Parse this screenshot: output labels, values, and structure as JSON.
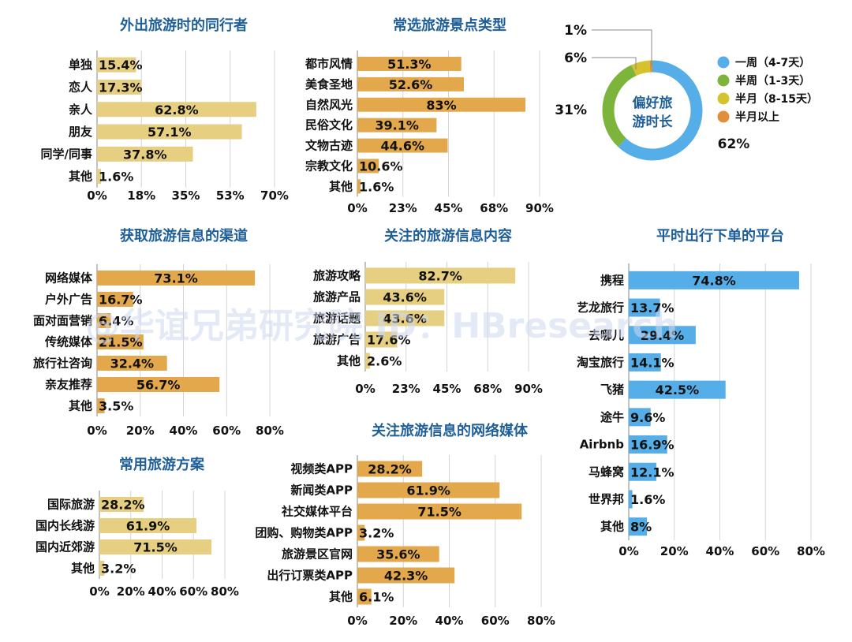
{
  "palette": {
    "light": "#e7cf82",
    "orange": "#e2a84b",
    "blue": "#56aee9",
    "green": "#7db43c",
    "yellow": "#d6c22f",
    "donut_orange": "#e08e3c"
  },
  "watermark": "@华谊兄弟研究院 ID：HBresearch",
  "chart_data": [
    {
      "id": "companions",
      "type": "bar",
      "title": "外出旅游时的同行者",
      "categories": [
        "单独",
        "恋人",
        "亲人",
        "朋友",
        "同学/同事",
        "其他"
      ],
      "values": [
        15.4,
        17.3,
        62.8,
        57.1,
        37.8,
        1.6
      ],
      "value_labels": [
        "15.4%",
        "17.3%",
        "62.8%",
        "57.1%",
        "37.8%",
        "1.6%"
      ],
      "xlim": [
        0,
        70
      ],
      "ticks": [
        "0%",
        "18%",
        "35%",
        "53%",
        "70%"
      ],
      "bar_colors": [
        "light",
        "light",
        "light",
        "light",
        "light",
        "light"
      ]
    },
    {
      "id": "spot_types",
      "type": "bar",
      "title": "常选旅游景点类型",
      "categories": [
        "都市风情",
        "美食圣地",
        "自然风光",
        "民俗文化",
        "文物古迹",
        "宗教文化",
        "其他"
      ],
      "values": [
        51.3,
        52.6,
        83,
        39.1,
        44.6,
        10.6,
        1.6
      ],
      "value_labels": [
        "51.3%",
        "52.6%",
        "83%",
        "39.1%",
        "44.6%",
        "10.6%",
        "1.6%"
      ],
      "xlim": [
        0,
        90
      ],
      "ticks": [
        "0%",
        "23%",
        "45%",
        "68%",
        "90%"
      ],
      "bar_colors": [
        "orange",
        "orange",
        "orange",
        "orange",
        "orange",
        "orange",
        "orange"
      ]
    },
    {
      "id": "duration",
      "type": "pie",
      "center_label": [
        "偏好旅",
        "游时长"
      ],
      "labels": [
        "一周（4-7天）",
        "半周（1-3天）",
        "半月（8-15天）",
        "半月以上"
      ],
      "values": [
        62,
        31,
        6,
        1
      ],
      "value_labels": [
        "62%",
        "31%",
        "6%",
        "1%"
      ],
      "colors": [
        "blue",
        "green",
        "yellow",
        "donut_orange"
      ]
    },
    {
      "id": "info_channels",
      "type": "bar",
      "title": "获取旅游信息的渠道",
      "categories": [
        "网络媒体",
        "户外广告",
        "面对面营销",
        "传统媒体",
        "旅行社咨询",
        "亲友推荐",
        "其他"
      ],
      "values": [
        73.1,
        16.7,
        6.4,
        21.5,
        32.4,
        56.7,
        3.5
      ],
      "value_labels": [
        "73.1%",
        "16.7%",
        "6.4%",
        "21.5%",
        "32.4%",
        "56.7%",
        "3.5%"
      ],
      "xlim": [
        0,
        80
      ],
      "ticks": [
        "0%",
        "20%",
        "40%",
        "60%",
        "80%"
      ],
      "bar_colors": [
        "orange",
        "orange",
        "orange",
        "orange",
        "orange",
        "orange",
        "orange"
      ]
    },
    {
      "id": "info_content",
      "type": "bar",
      "title": "关注的旅游信息内容",
      "categories": [
        "旅游攻略",
        "旅游产品",
        "旅游话题",
        "旅游广告",
        "其他"
      ],
      "values": [
        82.7,
        43.6,
        43.6,
        17.6,
        2.6
      ],
      "value_labels": [
        "82.7%",
        "43.6%",
        "43.6%",
        "17.6%",
        "2.6%"
      ],
      "xlim": [
        0,
        90
      ],
      "ticks": [
        "0%",
        "23%",
        "45%",
        "68%",
        "90%"
      ],
      "bar_colors": [
        "light",
        "light",
        "light",
        "light",
        "light"
      ]
    },
    {
      "id": "platforms",
      "type": "bar",
      "title": "平时出行下单的平台",
      "categories": [
        "携程",
        "艺龙旅行",
        "去哪儿",
        "淘宝旅行",
        "飞猪",
        "途牛",
        "Airbnb",
        "马蜂窝",
        "世界邦",
        "其他"
      ],
      "values": [
        74.8,
        13.7,
        29.4,
        14.1,
        42.5,
        9.6,
        16.9,
        12.1,
        1.6,
        8
      ],
      "value_labels": [
        "74.8%",
        "13.7%",
        "29.4%",
        "14.1%",
        "42.5%",
        "9.6%",
        "16.9%",
        "12.1%",
        "1.6%",
        "8%"
      ],
      "xlim": [
        0,
        80
      ],
      "ticks": [
        "0%",
        "20%",
        "40%",
        "60%",
        "80%"
      ],
      "bar_colors": [
        "blue",
        "blue",
        "blue",
        "blue",
        "blue",
        "blue",
        "blue",
        "blue",
        "blue",
        "blue"
      ]
    },
    {
      "id": "plans",
      "type": "bar",
      "title": "常用旅游方案",
      "categories": [
        "国际旅游",
        "国内长线游",
        "国内近郊游",
        "其他"
      ],
      "values": [
        28.2,
        61.9,
        71.5,
        3.2
      ],
      "value_labels": [
        "28.2%",
        "61.9%",
        "71.5%",
        "3.2%"
      ],
      "xlim": [
        0,
        80
      ],
      "ticks": [
        "0%",
        "20%",
        "40%",
        "60%",
        "80%"
      ],
      "bar_colors": [
        "light",
        "light",
        "light",
        "light"
      ]
    },
    {
      "id": "media",
      "type": "bar",
      "title": "关注旅游信息的网络媒体",
      "categories": [
        "视频类APP",
        "新闻类APP",
        "社交媒体平台",
        "团购、购物类APP",
        "旅游景区官网",
        "出行订票类APP",
        "其他"
      ],
      "values": [
        28.2,
        61.9,
        71.5,
        3.2,
        35.6,
        42.3,
        6.1
      ],
      "value_labels": [
        "28.2%",
        "61.9%",
        "71.5%",
        "3.2%",
        "35.6%",
        "42.3%",
        "6.1%"
      ],
      "xlim": [
        0,
        80
      ],
      "ticks": [
        "0%",
        "20%",
        "40%",
        "60%",
        "80%"
      ],
      "bar_colors": [
        "orange",
        "orange",
        "orange",
        "orange",
        "orange",
        "orange",
        "orange"
      ]
    }
  ]
}
